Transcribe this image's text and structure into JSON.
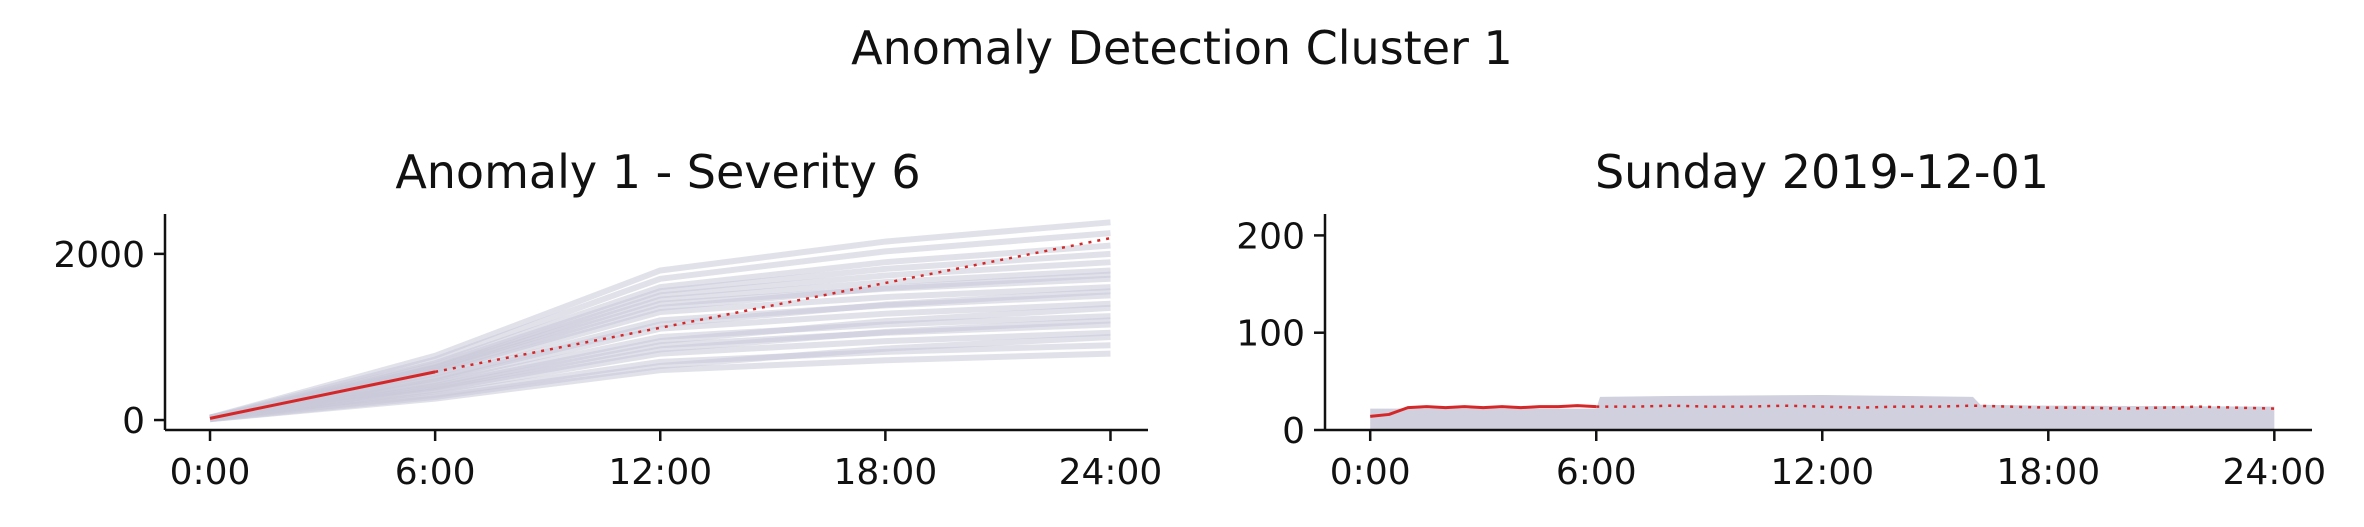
{
  "figure": {
    "title": "Anomaly Detection Cluster 1"
  },
  "colors": {
    "anomaly": "#d62728",
    "reference": "#c8c8d8",
    "axis": "#111111"
  },
  "chart_data": [
    {
      "type": "line",
      "title": "Anomaly 1 - Severity 6",
      "xlabel": "",
      "ylabel": "",
      "x_ticks": [
        0,
        6,
        12,
        18,
        24
      ],
      "x_tick_labels": [
        "0:00",
        "6:00",
        "12:00",
        "18:00",
        "24:00"
      ],
      "xlim": [
        -1.2,
        25
      ],
      "y_ticks": [
        0,
        2000
      ],
      "y_tick_labels": [
        "0",
        "2000"
      ],
      "ylim": [
        -120,
        2480
      ],
      "grid": false,
      "legend": "none",
      "reference_series": {
        "x": [
          0,
          6,
          12,
          18,
          24
        ],
        "end_values": [
          800,
          900,
          1050,
          1150,
          1250,
          1400,
          1500,
          1600,
          1700,
          1800,
          1900,
          2000,
          2100,
          2250,
          2380,
          1000,
          1200,
          1350,
          1550,
          1750
        ],
        "mid_values_at_12": [
          600,
          700,
          800,
          900,
          1000,
          1100,
          1200,
          1300,
          1400,
          1450,
          1500,
          1550,
          1600,
          1700,
          1800,
          650,
          850,
          950,
          1150,
          1350
        ]
      },
      "series": [
        {
          "style": "solid",
          "x": [
            0,
            6
          ],
          "values": [
            20,
            580
          ]
        },
        {
          "style": "dotted",
          "x": [
            6,
            12,
            18,
            24
          ],
          "values": [
            580,
            1110,
            1650,
            2190
          ]
        }
      ]
    },
    {
      "type": "line",
      "title": "Sunday 2019-12-01",
      "xlabel": "",
      "ylabel": "",
      "x_ticks": [
        0,
        6,
        12,
        18,
        24
      ],
      "x_tick_labels": [
        "0:00",
        "6:00",
        "12:00",
        "18:00",
        "24:00"
      ],
      "xlim": [
        -1.2,
        25
      ],
      "y_ticks": [
        0,
        100,
        200
      ],
      "y_tick_labels": [
        "0",
        "100",
        "200"
      ],
      "ylim": [
        0,
        222
      ],
      "grid": false,
      "legend": "none",
      "reference_band": {
        "x": [
          0,
          0.5,
          1,
          6,
          6.1,
          8,
          12,
          16,
          16.2,
          18,
          24
        ],
        "upper": [
          22,
          22,
          22,
          22,
          34,
          35,
          36,
          34,
          26,
          25,
          24
        ],
        "lower": [
          0,
          0,
          0,
          0,
          0,
          0,
          0,
          0,
          0,
          0,
          0
        ]
      },
      "series": [
        {
          "style": "solid",
          "x": [
            0,
            0.5,
            1,
            1.5,
            2,
            2.5,
            3,
            3.5,
            4,
            4.5,
            5,
            5.5,
            6
          ],
          "values": [
            14,
            16,
            23,
            24,
            23,
            24,
            23,
            24,
            23,
            24,
            24,
            25,
            24
          ]
        },
        {
          "style": "dotted",
          "x": [
            6,
            7,
            8,
            9,
            10,
            11,
            12,
            13,
            14,
            15,
            16,
            17,
            18,
            19,
            20,
            21,
            22,
            23,
            24
          ],
          "values": [
            24,
            24,
            25,
            24,
            24,
            25,
            24,
            23,
            24,
            24,
            25,
            24,
            23,
            23,
            22,
            23,
            24,
            23,
            22
          ]
        }
      ]
    }
  ]
}
